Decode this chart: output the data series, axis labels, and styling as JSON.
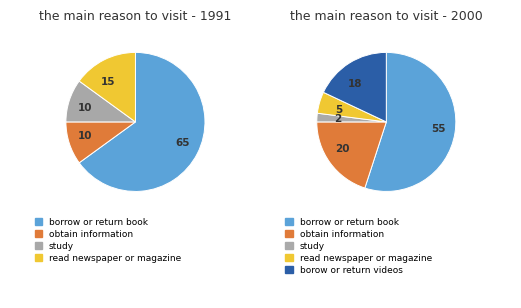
{
  "chart1": {
    "title": "the main reason to visit - 1991",
    "values": [
      65,
      10,
      10,
      15
    ],
    "labels": [
      "65",
      "10",
      "10",
      "15"
    ],
    "colors": [
      "#5BA3D9",
      "#E07B39",
      "#A8A8A8",
      "#F0C832"
    ],
    "legend_labels": [
      "borrow or return book",
      "obtain information",
      "study",
      "read newspaper or magazine"
    ],
    "startangle": 90
  },
  "chart2": {
    "title": "the main reason to visit - 2000",
    "values": [
      55,
      20,
      2,
      5,
      18
    ],
    "labels": [
      "55",
      "20",
      "2",
      "5",
      "18"
    ],
    "colors": [
      "#5BA3D9",
      "#E07B39",
      "#AAAAAA",
      "#F0C832",
      "#2B5EA7"
    ],
    "legend_labels": [
      "borrow or return book",
      "obtain information",
      "study",
      "read newspaper or magazine",
      "borow or return videos"
    ],
    "startangle": 90
  },
  "bg_color": "#FFFFFF",
  "panel_bg": "#F5F5F0",
  "text_color": "#333333",
  "title_fontsize": 9,
  "legend_fontsize": 6.5,
  "label_fontsize": 7.5
}
